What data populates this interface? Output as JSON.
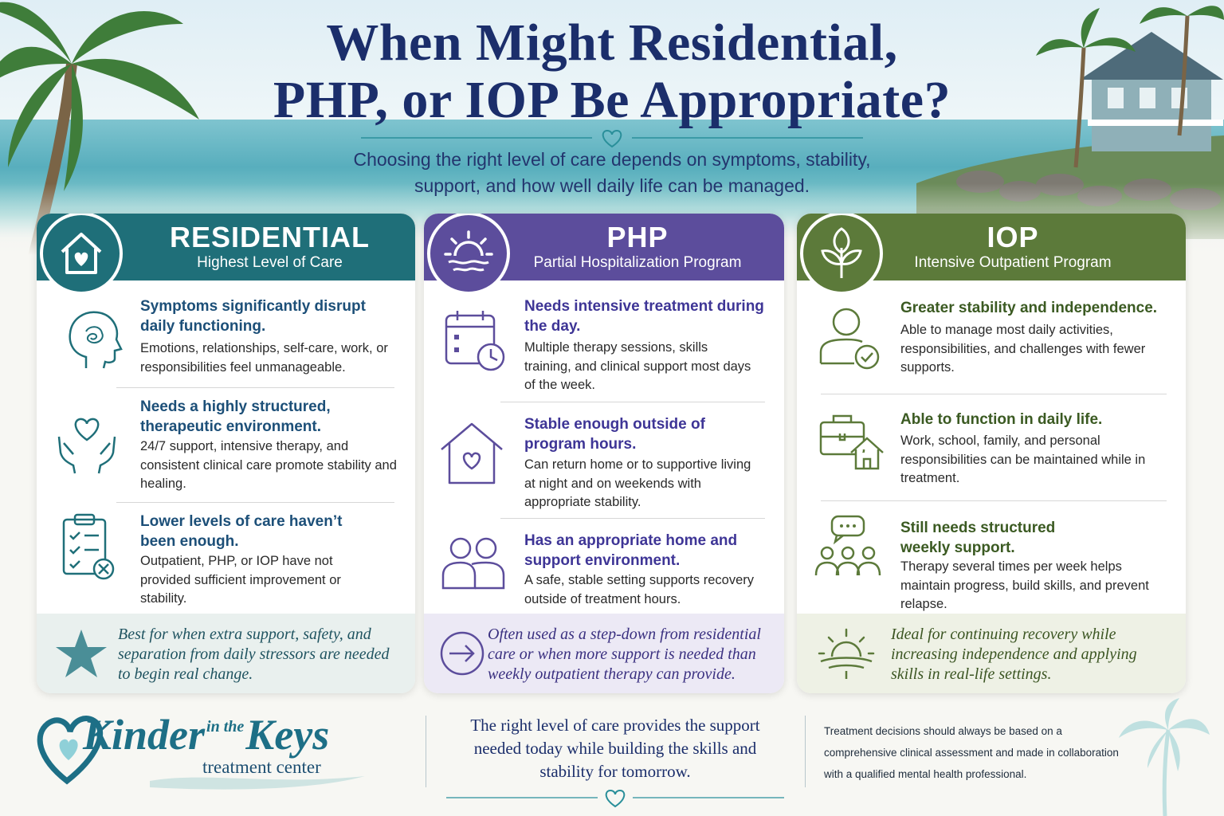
{
  "header": {
    "title_line1": "When Might Residential,",
    "title_line2": "PHP, or IOP Be Appropriate?",
    "subtitle_line1": "Choosing the right level of care depends on symptoms, stability,",
    "subtitle_line2": "support, and how well daily life can be managed."
  },
  "colors": {
    "title": "#1b2e6b",
    "residential": "#1f6f79",
    "php": "#5c4d9c",
    "iop": "#5c7a3a",
    "accent_heart": "#2a8f9a"
  },
  "columns": {
    "residential": {
      "title": "RESIDENTIAL",
      "subtitle": "Highest Level of Care",
      "badge_icon": "house-heart-icon",
      "items": [
        {
          "icon": "head-mind-icon",
          "heading": "Symptoms significantly disrupt daily functioning.",
          "body": "Emotions, relationships, self-care, work, or responsibilities feel unmanageable."
        },
        {
          "icon": "hands-heart-icon",
          "heading": "Needs a highly structured, therapeutic environment.",
          "body": "24/7 support, intensive therapy, and consistent clinical care promote stability and healing."
        },
        {
          "icon": "clipboard-x-icon",
          "heading": "Lower levels of care haven’t been enough.",
          "body": "Outpatient, PHP, or IOP have not provided sufficient improvement or stability."
        }
      ],
      "note_icon": "starfish-icon",
      "note": "Best for when extra support, safety, and separation from daily stressors are needed to begin real change."
    },
    "php": {
      "title": "PHP",
      "subtitle": "Partial Hospitalization Program",
      "badge_icon": "sun-icon",
      "items": [
        {
          "icon": "calendar-clock-icon",
          "heading": "Needs intensive treatment during the day.",
          "body": "Multiple therapy sessions, skills training, and clinical support most days of the week."
        },
        {
          "icon": "house-heart-icon",
          "heading": "Stable enough outside of program hours.",
          "body": "Can return home or to supportive living at night and on weekends with appropriate stability."
        },
        {
          "icon": "people-icon",
          "heading": "Has an appropriate home and support environment.",
          "body": "A safe, stable setting supports recovery outside of treatment hours."
        }
      ],
      "note_icon": "arrow-circle-icon",
      "note": "Often used as a step-down from residential care or when more support is needed than weekly outpatient therapy can provide."
    },
    "iop": {
      "title": "IOP",
      "subtitle": "Intensive Outpatient Program",
      "badge_icon": "leaf-icon",
      "items": [
        {
          "icon": "person-check-icon",
          "heading": "Greater stability and independence.",
          "body": "Able to manage most daily activities, responsibilities, and challenges with fewer supports."
        },
        {
          "icon": "briefcase-home-icon",
          "heading": "Able to function in daily life.",
          "body": "Work, school, family, and personal responsibilities can be maintained while in treatment."
        },
        {
          "icon": "group-chat-icon",
          "heading": "Still needs structured weekly support.",
          "body": "Therapy several times per week helps maintain progress, build skills, and prevent relapse."
        }
      ],
      "note_icon": "sunrise-icon",
      "note": "Ideal for continuing recovery while increasing independence and applying skills in real-life settings."
    }
  },
  "footer": {
    "logo_name": "Kinder",
    "logo_in_the": "in the",
    "logo_keys": "Keys",
    "logo_tagline": "treatment center",
    "quote": "The right level of care provides the support needed today while building the skills and stability for tomorrow.",
    "disclaimer": "Treatment decisions should always be based on a comprehensive clinical assessment and made in collaboration with a qualified mental health professional."
  }
}
